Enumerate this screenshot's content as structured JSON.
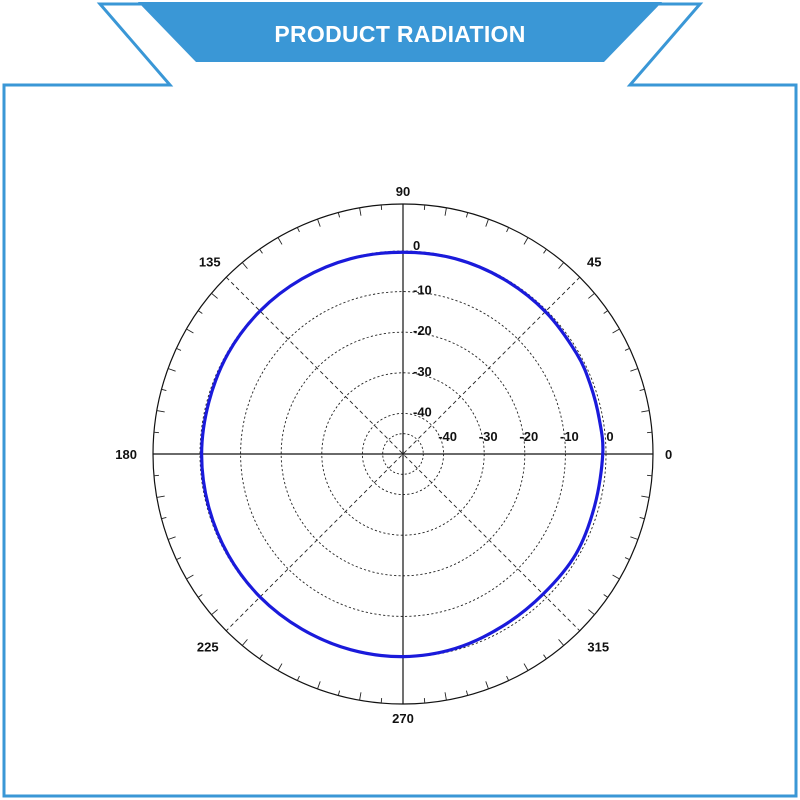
{
  "header": {
    "title": "PRODUCT RADIATION",
    "banner_color": "#3a97d6",
    "frame_color": "#3a97d6"
  },
  "chart_data": {
    "type": "polar-line",
    "angle_unit": "degrees",
    "angle_tick_labels": [
      "0",
      "45",
      "90",
      "135",
      "180",
      "225",
      "270",
      "315"
    ],
    "angle_ticks": [
      0,
      45,
      90,
      135,
      180,
      225,
      270,
      315
    ],
    "radial_range": [
      -50,
      0
    ],
    "radial_ticks": [
      0,
      -10,
      -20,
      -30,
      -40
    ],
    "radial_tick_labels_vertical": [
      "0",
      "-10",
      "-20",
      "-30",
      "-40"
    ],
    "radial_tick_labels_horizontal": [
      "-40",
      "-30",
      "-20",
      "-10",
      "0"
    ],
    "grid": true,
    "series": [
      {
        "color": "#1a1adb",
        "points": [
          {
            "angle": 0,
            "value": -0.8
          },
          {
            "angle": 10,
            "value": -0.9
          },
          {
            "angle": 20,
            "value": -0.8
          },
          {
            "angle": 30,
            "value": -0.6
          },
          {
            "angle": 45,
            "value": -0.4
          },
          {
            "angle": 60,
            "value": -0.3
          },
          {
            "angle": 75,
            "value": -0.2
          },
          {
            "angle": 90,
            "value": -0.3
          },
          {
            "angle": 105,
            "value": -0.2
          },
          {
            "angle": 120,
            "value": -0.2
          },
          {
            "angle": 135,
            "value": -0.2
          },
          {
            "angle": 150,
            "value": -0.3
          },
          {
            "angle": 165,
            "value": -0.5
          },
          {
            "angle": 180,
            "value": -0.4
          },
          {
            "angle": 195,
            "value": -0.4
          },
          {
            "angle": 210,
            "value": -0.3
          },
          {
            "angle": 225,
            "value": -0.2
          },
          {
            "angle": 240,
            "value": -0.2
          },
          {
            "angle": 255,
            "value": -0.1
          },
          {
            "angle": 270,
            "value": -0.1
          },
          {
            "angle": 285,
            "value": -0.4
          },
          {
            "angle": 300,
            "value": -1.0
          },
          {
            "angle": 315,
            "value": -1.2
          },
          {
            "angle": 330,
            "value": -0.8
          },
          {
            "angle": 345,
            "value": -1.1
          }
        ]
      }
    ]
  }
}
